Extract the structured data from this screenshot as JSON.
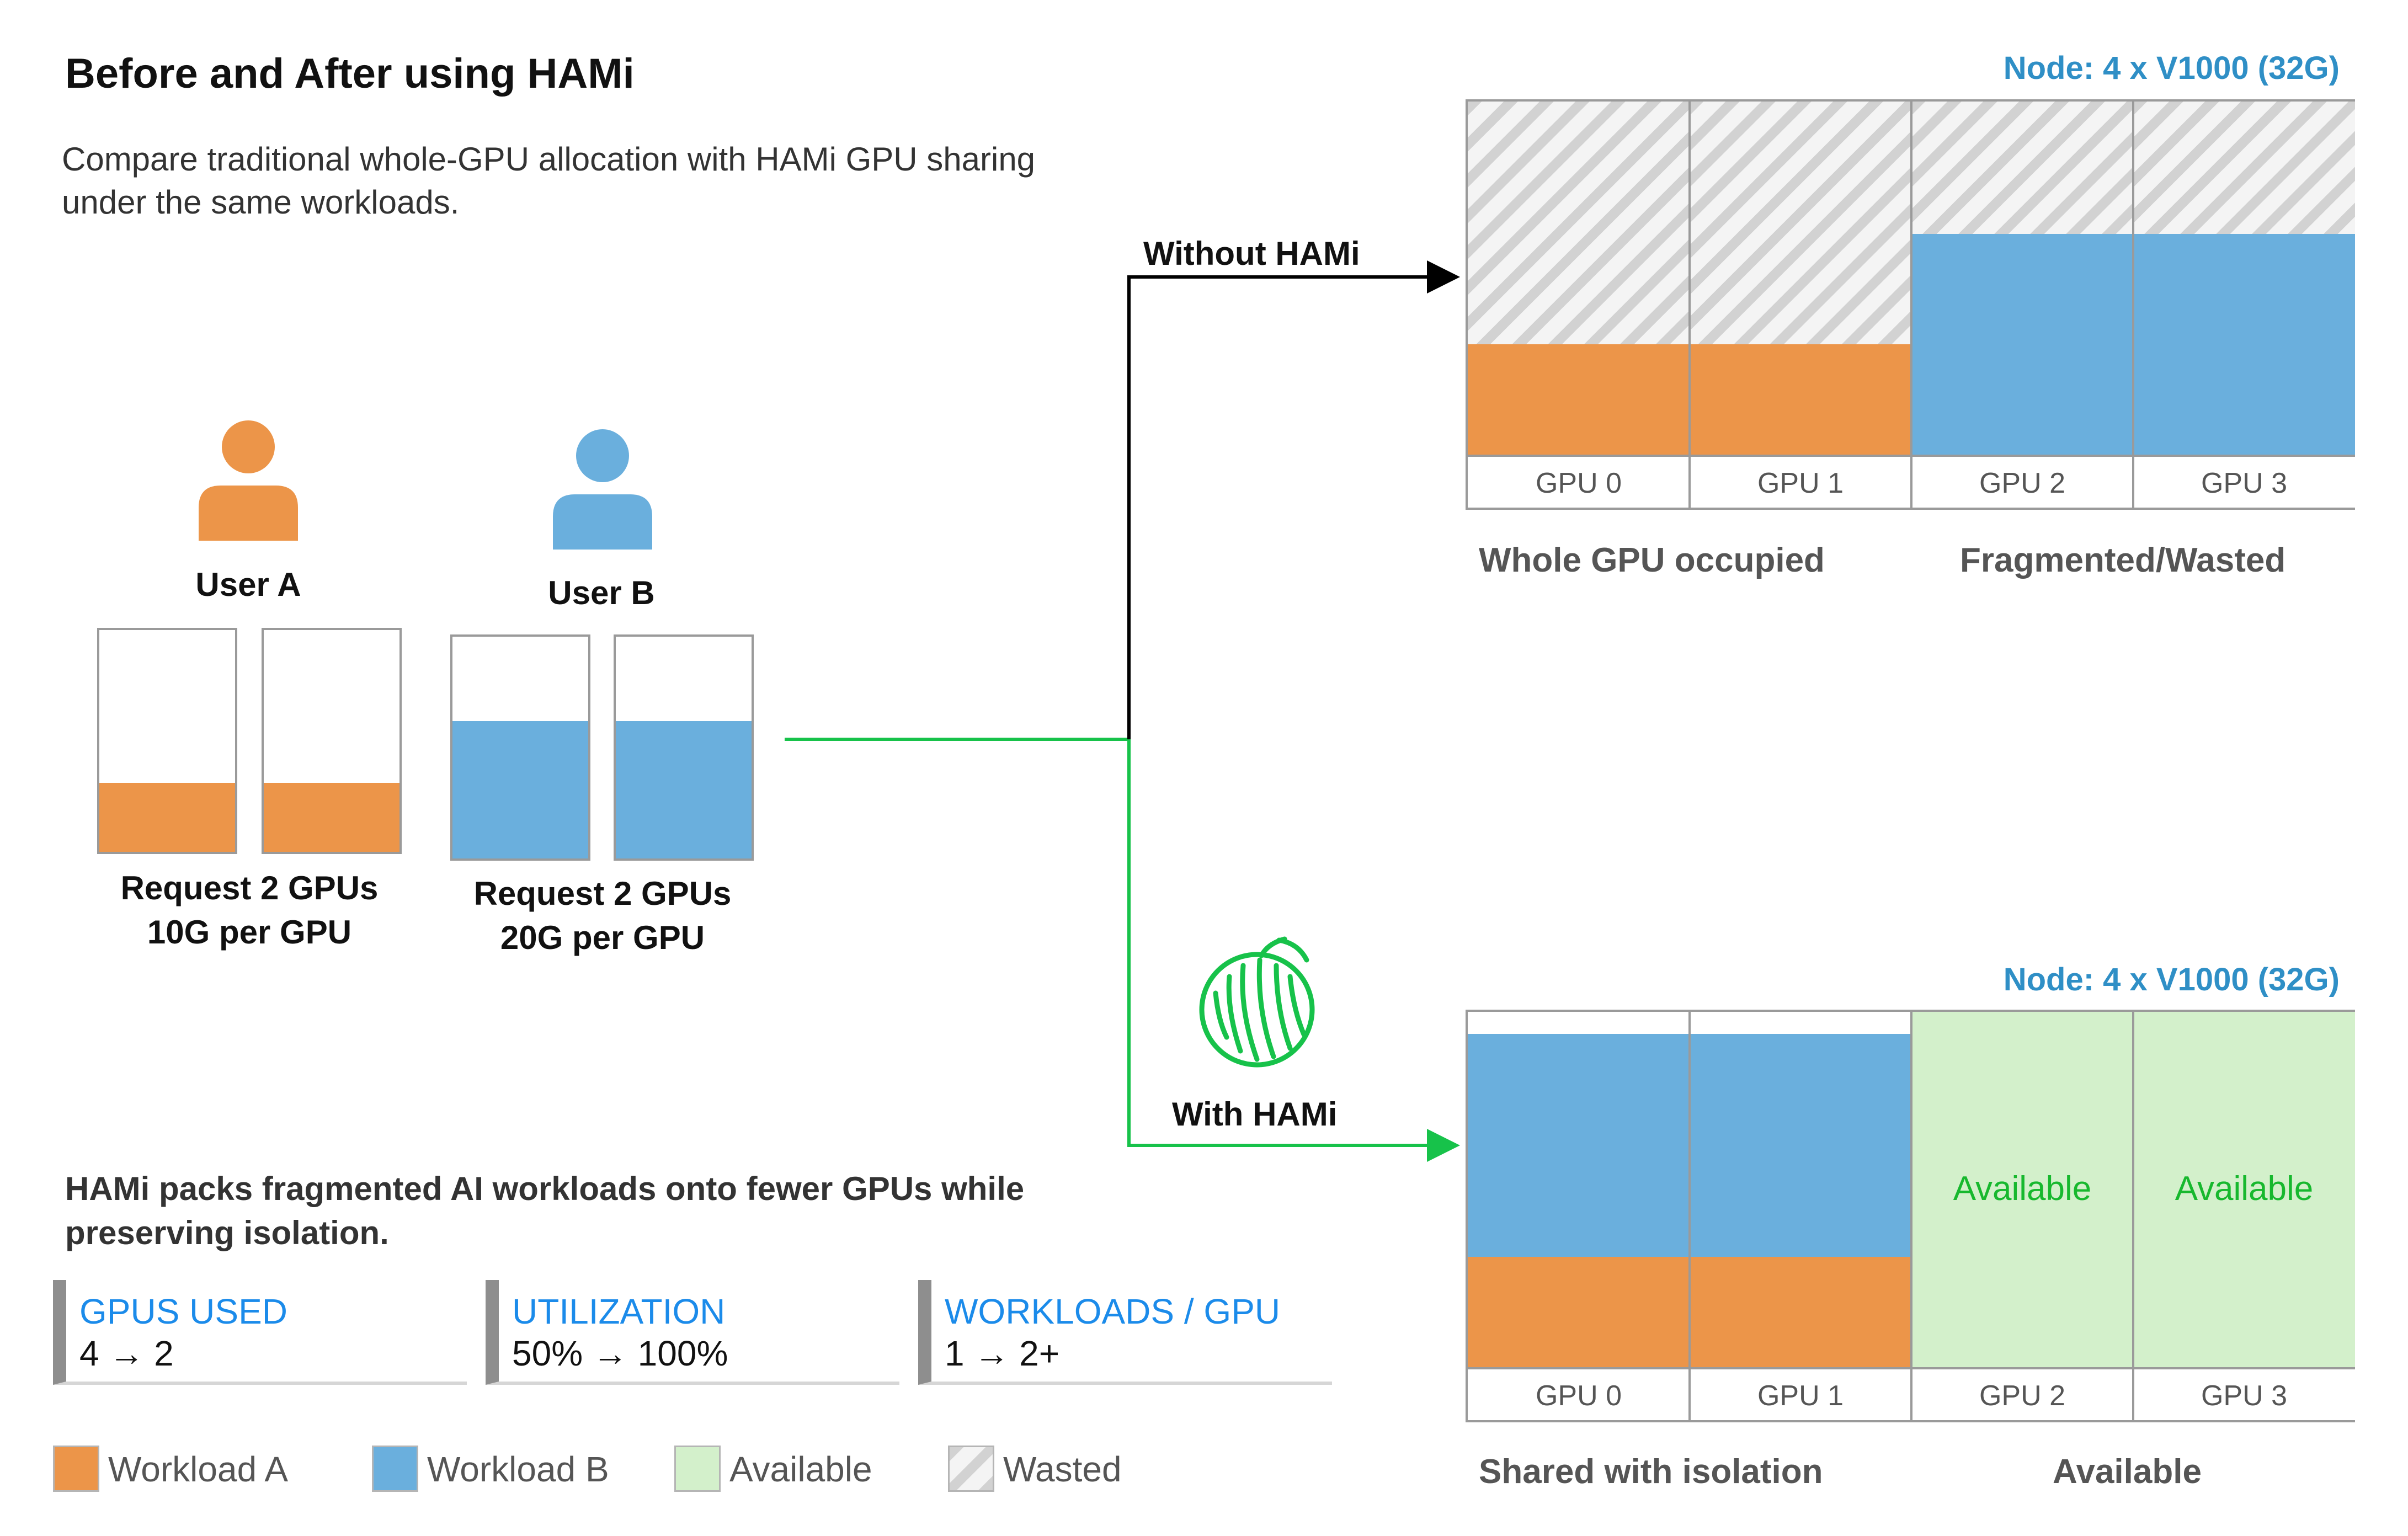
{
  "title": "Before and After using HAMi",
  "subtitle": "Compare traditional whole-GPU allocation with HAMi GPU sharing under the same workloads.",
  "users": [
    {
      "name": "User A",
      "request_line1": "Request 2 GPUs",
      "request_line2": "10G per GPU",
      "color": "#EC9549",
      "fill_fraction": 0.31
    },
    {
      "name": "User B",
      "request_line1": "Request 2 GPUs",
      "request_line2": "20G per GPU",
      "color": "#6AAFDD",
      "fill_fraction": 0.62
    }
  ],
  "paths": {
    "without_label": "Without HAMi",
    "with_label": "With HAMi",
    "without_color": "#000000",
    "with_color": "#17C24A"
  },
  "top_node": {
    "title": "Node: 4 x V1000 (32G)",
    "gpus": [
      "GPU 0",
      "GPU 1",
      "GPU 2",
      "GPU 3"
    ],
    "caption_left": "Whole GPU occupied",
    "caption_right": "Fragmented/Wasted"
  },
  "bottom_node": {
    "title": "Node: 4 x V1000 (32G)",
    "gpus": [
      "GPU 0",
      "GPU 1",
      "GPU 2",
      "GPU 3"
    ],
    "available_label_2": "Available",
    "available_label_3": "Available",
    "caption_left": "Shared with isolation",
    "caption_right": "Available"
  },
  "note": "HAMi packs fragmented AI workloads onto fewer GPUs while preserving isolation.",
  "stats": [
    {
      "key": "GPUS USED",
      "value": "4 → 2"
    },
    {
      "key": "UTILIZATION",
      "value": "50% → 100%"
    },
    {
      "key": "WORKLOADS / GPU",
      "value": "1 → 2+"
    }
  ],
  "legend": [
    {
      "label": "Workload A",
      "color": "#EC9549"
    },
    {
      "label": "Workload B",
      "color": "#6AAFDD"
    },
    {
      "label": "Available",
      "color": "#D3F0CB"
    },
    {
      "label": "Wasted",
      "color": "hatched-grey"
    }
  ],
  "icons": {
    "user_a": "person-icon",
    "user_b": "person-icon",
    "hami_logo": "melon-logo-icon"
  }
}
